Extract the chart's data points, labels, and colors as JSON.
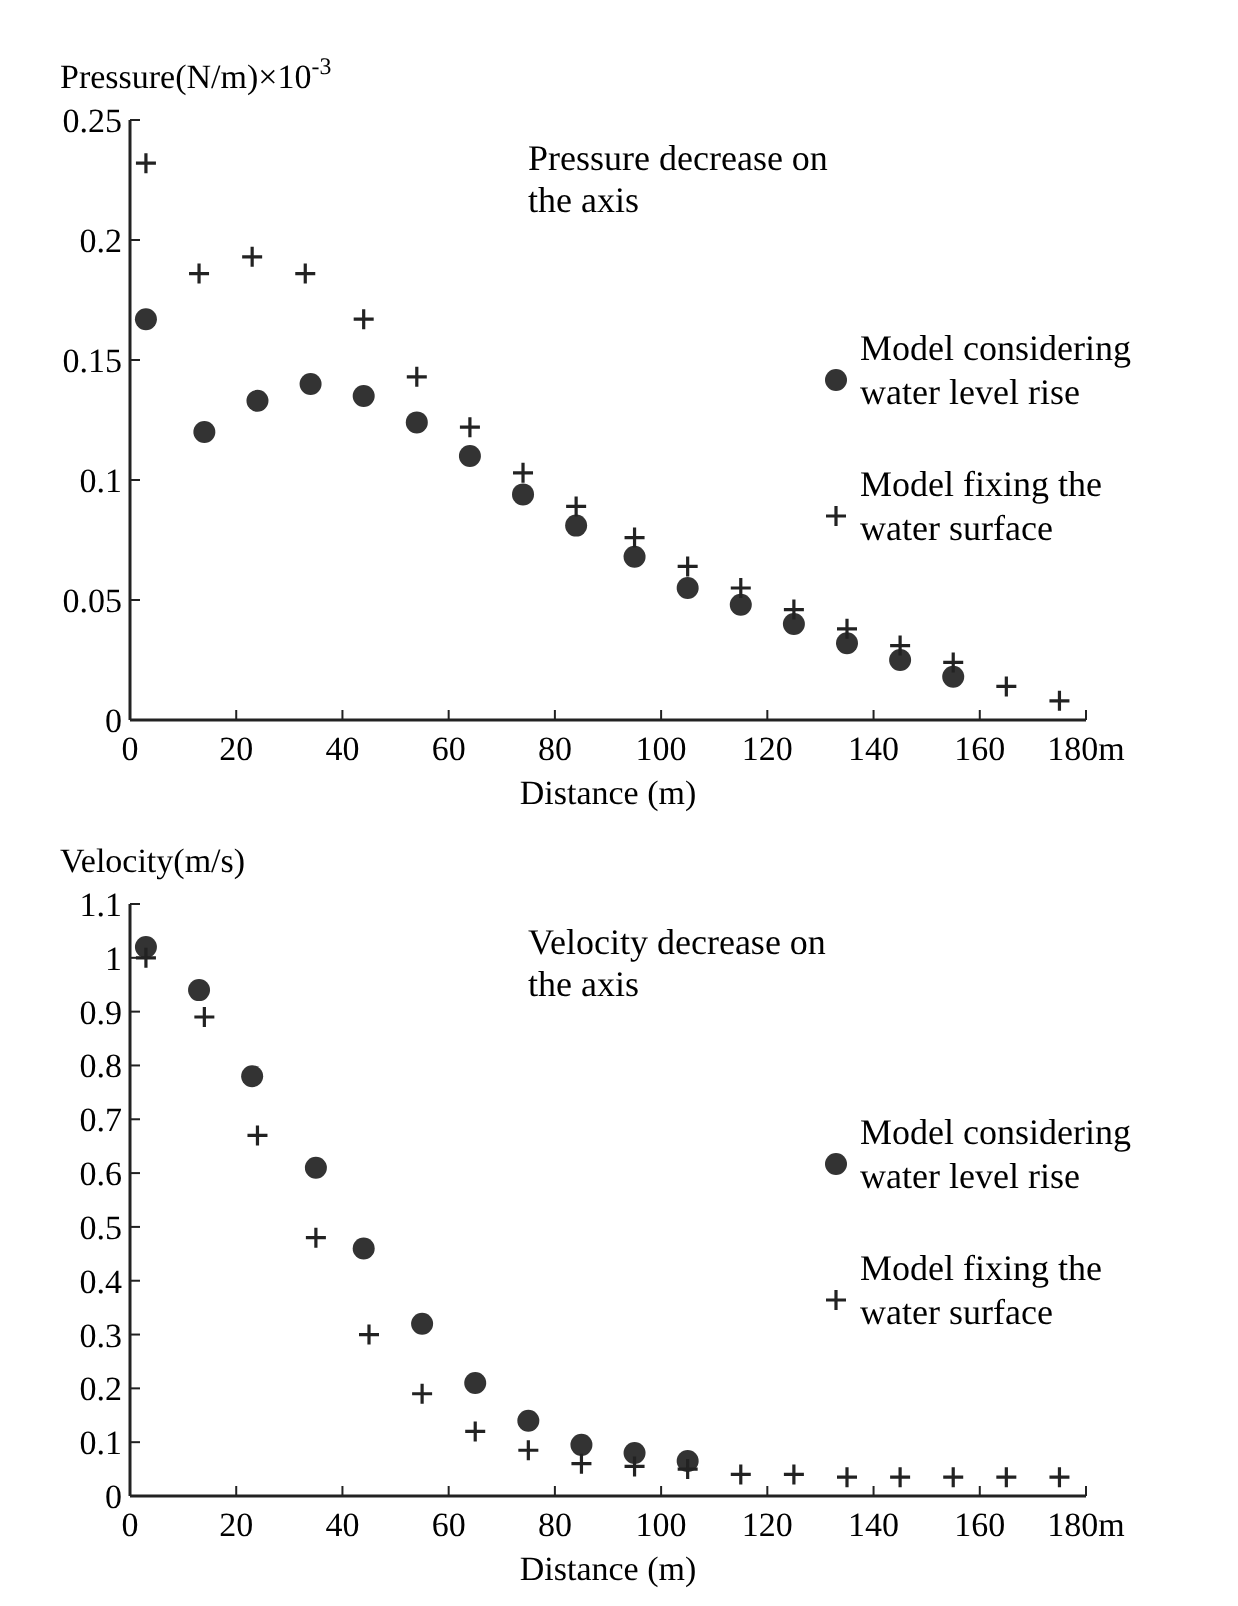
{
  "chart_data": [
    {
      "type": "scatter",
      "ylabel": "Pressure(N/m)×10$^{-3}$",
      "xlabel": "Distance (m)",
      "annotations": [
        "Pressure decrease on the axis"
      ],
      "xlim": [
        0,
        180
      ],
      "ylim": [
        0,
        0.25
      ],
      "xticks": [
        0,
        20,
        40,
        60,
        80,
        100,
        120,
        140,
        160,
        {
          "value": 180,
          "label": "180m"
        }
      ],
      "yticks": [
        0,
        0.05,
        0.1,
        0.15,
        0.2,
        0.25
      ],
      "legend": "right",
      "grid": false,
      "series": [
        {
          "name": "Model considering water level rise",
          "color": "#333333",
          "marker": "circle",
          "x": [
            3,
            14,
            24,
            34,
            44,
            54,
            64,
            74,
            84,
            95,
            105,
            115,
            125,
            135,
            145,
            155
          ],
          "values": [
            0.167,
            0.12,
            0.133,
            0.14,
            0.135,
            0.124,
            0.11,
            0.094,
            0.081,
            0.068,
            0.055,
            0.048,
            0.04,
            0.032,
            0.025,
            0.018
          ]
        },
        {
          "name": "Model fixing the water surface",
          "color": "#222222",
          "marker": "cross",
          "x": [
            3,
            13,
            23,
            33,
            44,
            54,
            64,
            74,
            84,
            95,
            105,
            115,
            125,
            135,
            145,
            155,
            165,
            175
          ],
          "values": [
            0.232,
            0.186,
            0.193,
            0.186,
            0.167,
            0.143,
            0.122,
            0.103,
            0.089,
            0.076,
            0.064,
            0.055,
            0.046,
            0.038,
            0.031,
            0.024,
            0.014,
            0.008
          ]
        }
      ]
    },
    {
      "type": "scatter",
      "ylabel": "Velocity(m/s)",
      "xlabel": "Distance (m)",
      "annotations": [
        "Velocity decrease on the axis"
      ],
      "xlim": [
        0,
        180
      ],
      "ylim": [
        0,
        1.1
      ],
      "xticks": [
        0,
        20,
        40,
        60,
        80,
        100,
        120,
        140,
        160,
        {
          "value": 180,
          "label": "180m"
        }
      ],
      "yticks": [
        0,
        0.1,
        0.2,
        0.3,
        0.4,
        0.5,
        0.6,
        0.7,
        0.8,
        0.9,
        1,
        1.1
      ],
      "legend": "right",
      "grid": false,
      "series": [
        {
          "name": "Model considering water level rise",
          "color": "#333333",
          "marker": "circle",
          "x": [
            3,
            13,
            23,
            35,
            44,
            55,
            65,
            75,
            85,
            95,
            105
          ],
          "values": [
            1.02,
            0.94,
            0.78,
            0.61,
            0.46,
            0.32,
            0.21,
            0.14,
            0.095,
            0.08,
            0.065
          ]
        },
        {
          "name": "Model fixing the water surface",
          "color": "#222222",
          "marker": "cross",
          "x": [
            3,
            14,
            24,
            35,
            45,
            55,
            65,
            75,
            85,
            95,
            105,
            115,
            125,
            135,
            145,
            155,
            165,
            175
          ],
          "values": [
            1.0,
            0.89,
            0.67,
            0.48,
            0.3,
            0.19,
            0.12,
            0.085,
            0.06,
            0.055,
            0.05,
            0.04,
            0.04,
            0.035,
            0.035,
            0.035,
            0.035,
            0.035
          ]
        }
      ]
    }
  ]
}
